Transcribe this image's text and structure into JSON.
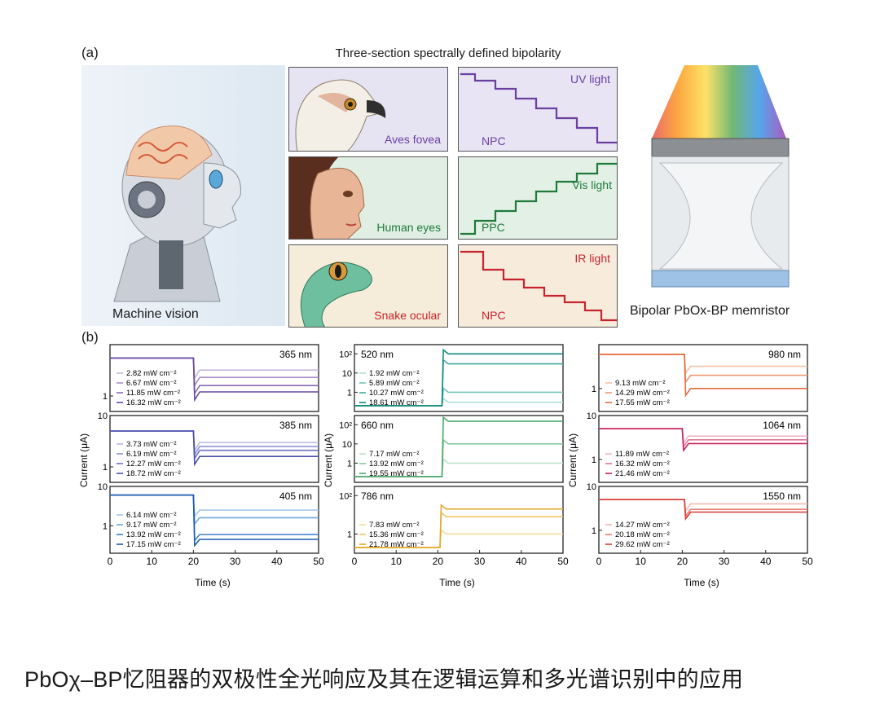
{
  "panel_a": {
    "label": "(a)",
    "title": "Three-section spectrally defined bipolarity",
    "left_caption": "Machine vision",
    "right_caption": "Bipolar PbOx-BP memristor",
    "rows": [
      {
        "eye_label": "Aves fovea",
        "light": "UV light",
        "mode": "NPC",
        "color": "#6a3fa0",
        "bg": "#e8e4f4"
      },
      {
        "eye_label": "Human eyes",
        "light": "Vis light",
        "mode": "PPC",
        "color": "#1f7a3a",
        "bg": "#e3f0e6"
      },
      {
        "eye_label": "Snake ocular",
        "light": "IR light",
        "mode": "NPC",
        "color": "#c8232c",
        "bg": "#f7ecdc"
      }
    ]
  },
  "panel_b": {
    "label": "(b)",
    "ylabel": "Current (μA)",
    "xlabel": "Time (s)",
    "x_ticks": [
      "0",
      "10",
      "20",
      "30",
      "40",
      "50"
    ]
  },
  "chart_data": [
    {
      "type": "line",
      "title": "365 nm",
      "xlabel": "",
      "ylabel": "",
      "ylim": [
        0.5,
        10
      ],
      "yscale": "log",
      "y_ticks": [
        "1"
      ],
      "series": [
        {
          "name": "2.82 mW cm⁻²",
          "before": 5.5,
          "after": 3.2
        },
        {
          "name": "6.67 mW cm⁻²",
          "before": 5.5,
          "after": 2.3
        },
        {
          "name": "11.85 mW cm⁻²",
          "before": 5.5,
          "after": 1.6
        },
        {
          "name": "16.32 mW cm⁻²",
          "before": 5.5,
          "after": 1.2
        }
      ],
      "colors": [
        "#c8b6de",
        "#a98fcb",
        "#8a6ab8",
        "#6b48a3"
      ],
      "switch_t": 20
    },
    {
      "type": "line",
      "title": "385 nm",
      "xlabel": "",
      "ylabel": "",
      "ylim": [
        0.5,
        10
      ],
      "yscale": "log",
      "y_ticks": [
        "10",
        "1"
      ],
      "series": [
        {
          "name": "3.73 mW cm⁻²",
          "before": 5.0,
          "after": 3.0
        },
        {
          "name": "6.19 mW cm⁻²",
          "before": 5.0,
          "after": 2.5
        },
        {
          "name": "12.27 mW cm⁻²",
          "before": 5.0,
          "after": 2.1
        },
        {
          "name": "18.72 mW cm⁻²",
          "before": 5.0,
          "after": 1.6
        }
      ],
      "colors": [
        "#b6b9e4",
        "#8e93d4",
        "#6c71c2",
        "#4b50ad"
      ],
      "switch_t": 20
    },
    {
      "type": "line",
      "title": "405 nm",
      "xlabel": "",
      "ylabel": "",
      "ylim": [
        0.2,
        10
      ],
      "yscale": "log",
      "y_ticks": [
        "10",
        "1"
      ],
      "series": [
        {
          "name": "6.14 mW cm⁻²",
          "before": 6.0,
          "after": 2.5
        },
        {
          "name": "9.17 mW cm⁻²",
          "before": 6.0,
          "after": 1.6
        },
        {
          "name": "13.92 mW cm⁻²",
          "before": 6.0,
          "after": 0.6
        },
        {
          "name": "17.15 mW cm⁻²",
          "before": 6.0,
          "after": 0.45
        }
      ],
      "colors": [
        "#a6c8ec",
        "#6fa6df",
        "#3d7fcc",
        "#1c5cb0"
      ],
      "switch_t": 20
    },
    {
      "type": "line",
      "title": "520 nm",
      "xlabel": "",
      "ylabel": "",
      "ylim": [
        0.1,
        300
      ],
      "yscale": "log",
      "y_ticks": [
        "10²",
        "10",
        "1"
      ],
      "series": [
        {
          "name": "1.92 mW cm⁻²",
          "before": 0.2,
          "after": 0.3
        },
        {
          "name": "5.89 mW cm⁻²",
          "before": 0.2,
          "after": 1.0
        },
        {
          "name": "10.27 mW cm⁻²",
          "before": 0.2,
          "after": 30
        },
        {
          "name": "18.61 mW cm⁻²",
          "before": 0.2,
          "after": 100
        }
      ],
      "colors": [
        "#a9ddd7",
        "#73c4ba",
        "#3ea89c",
        "#128a7e"
      ],
      "switch_t": 21
    },
    {
      "type": "line",
      "title": "660 nm",
      "xlabel": "",
      "ylabel": "",
      "ylim": [
        0.1,
        300
      ],
      "yscale": "log",
      "y_ticks": [
        "10²",
        "10",
        "1"
      ],
      "series": [
        {
          "name": "7.17 mW cm⁻²",
          "before": 0.2,
          "after": 1.0
        },
        {
          "name": "13.92 mW cm⁻²",
          "before": 0.2,
          "after": 10
        },
        {
          "name": "19.55 mW cm⁻²",
          "before": 0.2,
          "after": 150
        }
      ],
      "colors": [
        "#bde3c7",
        "#85c99a",
        "#4da96f"
      ],
      "switch_t": 21
    },
    {
      "type": "line",
      "title": "786 nm",
      "xlabel": "",
      "ylabel": "",
      "ylim": [
        0.1,
        300
      ],
      "yscale": "log",
      "y_ticks": [
        "10²",
        "1"
      ],
      "series": [
        {
          "name": "7.83 mW cm⁻²",
          "before": 0.2,
          "after": 1.0
        },
        {
          "name": "15.36 mW cm⁻²",
          "before": 0.2,
          "after": 8
        },
        {
          "name": "21.78 mW cm⁻²",
          "before": 0.2,
          "after": 20
        }
      ],
      "colors": [
        "#f4dc9c",
        "#eec563",
        "#e2a72a"
      ],
      "switch_t": 20.5
    },
    {
      "type": "line",
      "title": "980 nm",
      "xlabel": "",
      "ylabel": "",
      "ylim": [
        0.3,
        10
      ],
      "yscale": "log",
      "y_ticks": [
        "1"
      ],
      "series": [
        {
          "name": "9.13 mW cm⁻²",
          "before": 6.0,
          "after": 3.2
        },
        {
          "name": "14.29 mW cm⁻²",
          "before": 6.0,
          "after": 2.0
        },
        {
          "name": "17.55 mW cm⁻²",
          "before": 6.0,
          "after": 1.0
        }
      ],
      "colors": [
        "#f7c2a6",
        "#f09a74",
        "#e46a3e"
      ],
      "switch_t": 20.5
    },
    {
      "type": "line",
      "title": "1064 nm",
      "xlabel": "",
      "ylabel": "",
      "ylim": [
        0.3,
        10
      ],
      "yscale": "log",
      "y_ticks": [
        "10",
        "1"
      ],
      "series": [
        {
          "name": "11.89 mW cm⁻²",
          "before": 5.0,
          "after": 3.4
        },
        {
          "name": "16.32 mW cm⁻²",
          "before": 5.0,
          "after": 2.8
        },
        {
          "name": "21.46 mW cm⁻²",
          "before": 5.0,
          "after": 2.3
        }
      ],
      "colors": [
        "#f1b3c5",
        "#e07593",
        "#c8245a"
      ],
      "switch_t": 20
    },
    {
      "type": "line",
      "title": "1550 nm",
      "xlabel": "",
      "ylabel": "",
      "ylim": [
        0.3,
        10
      ],
      "yscale": "log",
      "y_ticks": [
        "10",
        "1"
      ],
      "series": [
        {
          "name": "14.27 mW cm⁻²",
          "before": 5.0,
          "after": 4.0
        },
        {
          "name": "20.18 mW cm⁻²",
          "before": 5.0,
          "after": 3.0
        },
        {
          "name": "29.62 mW cm⁻²",
          "before": 5.0,
          "after": 2.6
        }
      ],
      "colors": [
        "#f6b7b0",
        "#ea7b71",
        "#d63a34"
      ],
      "switch_t": 20.5
    }
  ],
  "caption": "PbOχ–BP忆阻器的双极性全光响应及其在逻辑运算和多光谱识别中的应用"
}
